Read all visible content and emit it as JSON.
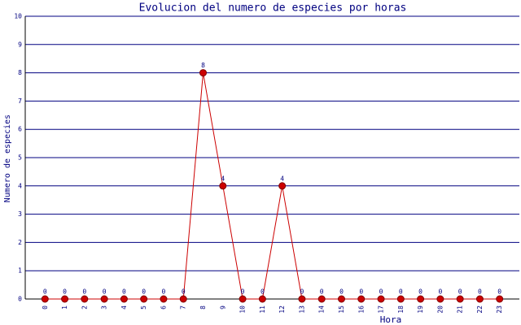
{
  "chart_data": {
    "type": "line",
    "title": "Evolucion del numero de especies por horas",
    "x_label": "Hora",
    "y_label": "Numero de especies",
    "categories": [
      "0",
      "1",
      "2",
      "3",
      "4",
      "5",
      "6",
      "7",
      "8",
      "9",
      "10",
      "11",
      "12",
      "13",
      "14",
      "15",
      "16",
      "17",
      "18",
      "19",
      "20",
      "21",
      "22",
      "23"
    ],
    "series": [
      {
        "name": "Numero de especies",
        "color": "#cc0000",
        "values": [
          0,
          0,
          0,
          0,
          0,
          0,
          0,
          0,
          8,
          4,
          0,
          0,
          4,
          0,
          0,
          0,
          0,
          0,
          0,
          0,
          0,
          0,
          0,
          0
        ]
      }
    ],
    "ylim": [
      0,
      10
    ],
    "yticks": [
      0,
      1,
      2,
      3,
      4,
      5,
      6,
      7,
      8,
      9,
      10
    ],
    "grid": true
  }
}
